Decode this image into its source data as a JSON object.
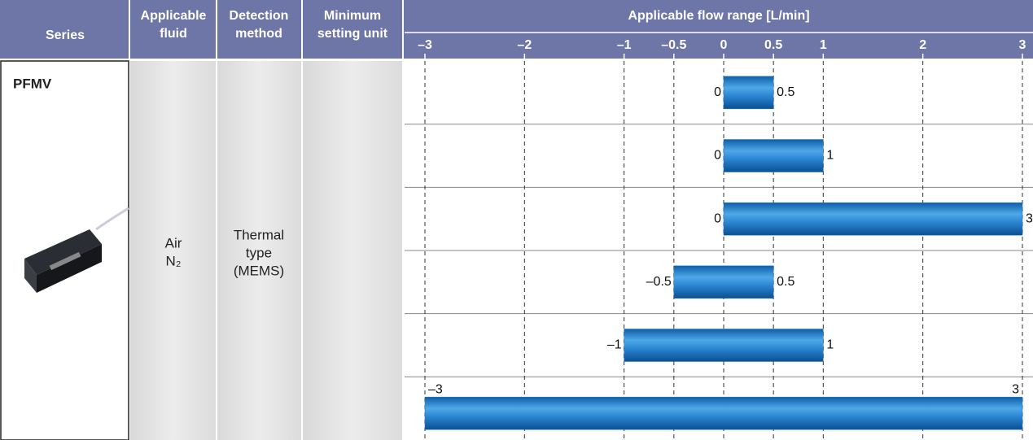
{
  "table": {
    "headers": [
      [
        "Series"
      ],
      [
        "Applicable",
        "fluid"
      ],
      [
        "Detection",
        "method"
      ],
      [
        "Minimum",
        "setting unit"
      ]
    ],
    "series": "PFMV",
    "fluid": [
      "Air",
      "N₂"
    ],
    "detection": [
      "Thermal",
      "type",
      "(MEMS)"
    ]
  },
  "chart_data": {
    "type": "range-bar",
    "title": "Applicable flow range [L/min]",
    "low": [
      0,
      0,
      0,
      -0.5,
      -1,
      -3
    ],
    "high": [
      0.5,
      1,
      3,
      0.5,
      1,
      3
    ],
    "low_value_labels": [
      "0",
      "0",
      "0",
      "–0.5",
      "–1",
      "–3"
    ],
    "color": "#1f78c8",
    "xlim": [
      -3,
      3
    ],
    "xticks": [
      {
        "value": -3,
        "label": "–3"
      },
      {
        "value": -2,
        "label": "–2"
      },
      {
        "value": -1,
        "label": "–1"
      },
      {
        "value": -0.5,
        "label": "–0.5"
      },
      0,
      0.5,
      1,
      2,
      3
    ],
    "grid": true
  }
}
